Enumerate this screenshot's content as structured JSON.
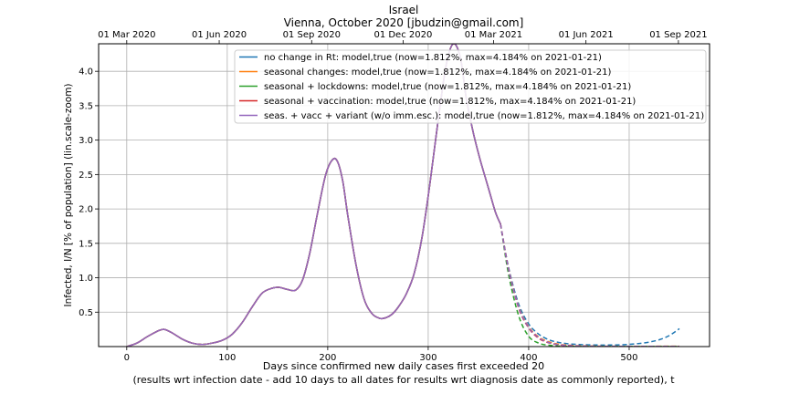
{
  "chart_data": {
    "type": "line",
    "title": "Israel",
    "subtitle": "Vienna, October 2020 [jbudzin@gmail.com]",
    "xlabel": "Days since confirmed new daily cases first exceeded 20",
    "xlabel2": "(results wrt infection date - add 10 days to all dates for results wrt diagnosis date as commonly reported), t",
    "ylabel": "Infected, I/N [% of population] (lin.scale-zoom)",
    "xlim": [
      -28,
      580
    ],
    "ylim": [
      0,
      4.4
    ],
    "xticks": [
      0,
      100,
      200,
      300,
      400,
      500
    ],
    "xtick_labels": [
      "0",
      "100",
      "200",
      "300",
      "400",
      "500"
    ],
    "yticks": [
      0.5,
      1.0,
      1.5,
      2.0,
      2.5,
      3.0,
      3.5,
      4.0
    ],
    "ytick_labels": [
      "0.5",
      "1.0",
      "1.5",
      "2.0",
      "2.5",
      "3.0",
      "3.5",
      "4.0"
    ],
    "top_axis": {
      "ticks": [
        0,
        92,
        184,
        275,
        365,
        457,
        549
      ],
      "labels": [
        "01 Mar 2020",
        "01 Jun 2020",
        "01 Sep 2020",
        "01 Dec 2020",
        "01 Mar 2021",
        "01 Jun 2021",
        "01 Sep 2021"
      ]
    },
    "grid": true,
    "legend_position": "upper-right",
    "observed": {
      "x": [
        0,
        10,
        20,
        30,
        37,
        45,
        55,
        65,
        75,
        85,
        95,
        105,
        115,
        125,
        135,
        145,
        152,
        160,
        168,
        175,
        182,
        190,
        198,
        205,
        210,
        215,
        220,
        228,
        236,
        244,
        252,
        258,
        264,
        270,
        278,
        286,
        294,
        302,
        310,
        318,
        325,
        332,
        338,
        345,
        352,
        360,
        367,
        372
      ],
      "y": [
        0.0,
        0.05,
        0.14,
        0.22,
        0.25,
        0.2,
        0.11,
        0.05,
        0.03,
        0.05,
        0.09,
        0.18,
        0.35,
        0.58,
        0.78,
        0.85,
        0.86,
        0.83,
        0.82,
        0.97,
        1.35,
        1.95,
        2.5,
        2.72,
        2.68,
        2.4,
        1.9,
        1.2,
        0.7,
        0.48,
        0.41,
        0.42,
        0.47,
        0.57,
        0.76,
        1.06,
        1.6,
        2.4,
        3.3,
        4.1,
        4.4,
        4.2,
        3.6,
        3.1,
        2.7,
        2.3,
        1.95,
        1.78
      ]
    },
    "series": [
      {
        "name": "no change in Rt: model,true (now=1.812%, max=4.184% on 2021-01-21)",
        "color": "#1f77b4",
        "x": [
          372,
          380,
          390,
          400,
          410,
          420,
          430,
          440,
          450,
          460,
          470,
          480,
          490,
          500,
          510,
          520,
          530,
          540,
          550
        ],
        "y": [
          1.78,
          1.15,
          0.62,
          0.33,
          0.18,
          0.1,
          0.06,
          0.04,
          0.03,
          0.025,
          0.022,
          0.022,
          0.025,
          0.032,
          0.045,
          0.065,
          0.1,
          0.16,
          0.26
        ]
      },
      {
        "name": "seasonal changes: model,true (now=1.812%, max=4.184% on 2021-01-21)",
        "color": "#ff7f0e",
        "x": [
          372,
          380,
          390,
          400,
          410,
          420,
          430,
          440,
          450,
          460,
          480,
          500,
          520,
          550
        ],
        "y": [
          1.78,
          1.13,
          0.58,
          0.29,
          0.14,
          0.07,
          0.035,
          0.02,
          0.012,
          0.008,
          0.005,
          0.004,
          0.004,
          0.005
        ]
      },
      {
        "name": "seasonal + lockdowns: model,true (now=1.812%, max=4.184% on 2021-01-21)",
        "color": "#2ca02c",
        "x": [
          372,
          380,
          390,
          400,
          410,
          420,
          430,
          440,
          450,
          460,
          480,
          500,
          520,
          550
        ],
        "y": [
          1.78,
          1.05,
          0.45,
          0.15,
          0.05,
          0.02,
          0.008,
          0.004,
          0.002,
          0.001,
          0.001,
          0.001,
          0.001,
          0.001
        ]
      },
      {
        "name": "seasonal + vaccination: model,true (now=1.812%, max=4.184% on 2021-01-21)",
        "color": "#d62728",
        "x": [
          372,
          380,
          390,
          400,
          410,
          420,
          430,
          440,
          450,
          460,
          480,
          500,
          520,
          550
        ],
        "y": [
          1.78,
          1.12,
          0.56,
          0.27,
          0.12,
          0.055,
          0.025,
          0.012,
          0.006,
          0.004,
          0.002,
          0.001,
          0.001,
          0.001
        ]
      },
      {
        "name": "seas. + vacc + variant (w/o imm.esc.): model,true (now=1.812%, max=4.184% on 2021-01-21)",
        "color": "#9467bd",
        "x": [
          372,
          380,
          390,
          400,
          410,
          420,
          430,
          440,
          450,
          460,
          480,
          500,
          520,
          550
        ],
        "y": [
          1.78,
          1.12,
          0.57,
          0.28,
          0.13,
          0.06,
          0.028,
          0.014,
          0.008,
          0.005,
          0.003,
          0.002,
          0.002,
          0.002
        ]
      }
    ]
  }
}
